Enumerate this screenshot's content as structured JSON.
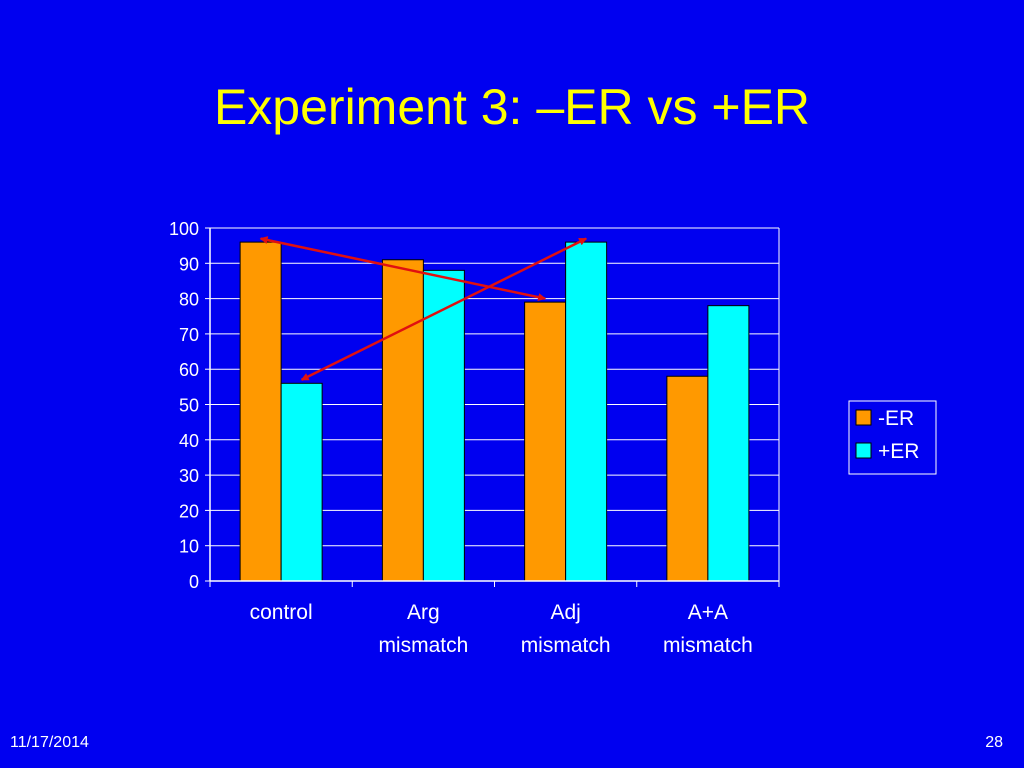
{
  "title": "Experiment 3: –ER vs +ER",
  "footer": {
    "date": "11/17/2014",
    "page": "28"
  },
  "colors": {
    "background": "#0000f0",
    "title": "#ffff00",
    "minus_er": "#ff9900",
    "plus_er": "#00ffff",
    "arrow": "#e01010",
    "gridline": "#ffffff"
  },
  "chart_data": {
    "type": "bar",
    "categories": [
      [
        "control"
      ],
      [
        "Arg",
        "mismatch"
      ],
      [
        "Adj",
        "mismatch"
      ],
      [
        "A+A",
        "mismatch"
      ]
    ],
    "series": [
      {
        "name": "-ER",
        "values": [
          96,
          91,
          79,
          58
        ]
      },
      {
        "name": "+ER",
        "values": [
          56,
          88,
          96,
          78
        ]
      }
    ],
    "ylim": [
      0,
      100
    ],
    "yticks": [
      0,
      10,
      20,
      30,
      40,
      50,
      60,
      70,
      80,
      90,
      100
    ],
    "grid": true,
    "legend": "right",
    "annotations": [
      {
        "type": "double-arrow",
        "from": {
          "category": 0,
          "series": 0,
          "value": 97
        },
        "to": {
          "category": 2,
          "series": 0,
          "value": 80
        }
      },
      {
        "type": "double-arrow",
        "from": {
          "category": 0,
          "series": 1,
          "value": 57
        },
        "to": {
          "category": 2,
          "series": 1,
          "value": 97
        }
      }
    ]
  }
}
